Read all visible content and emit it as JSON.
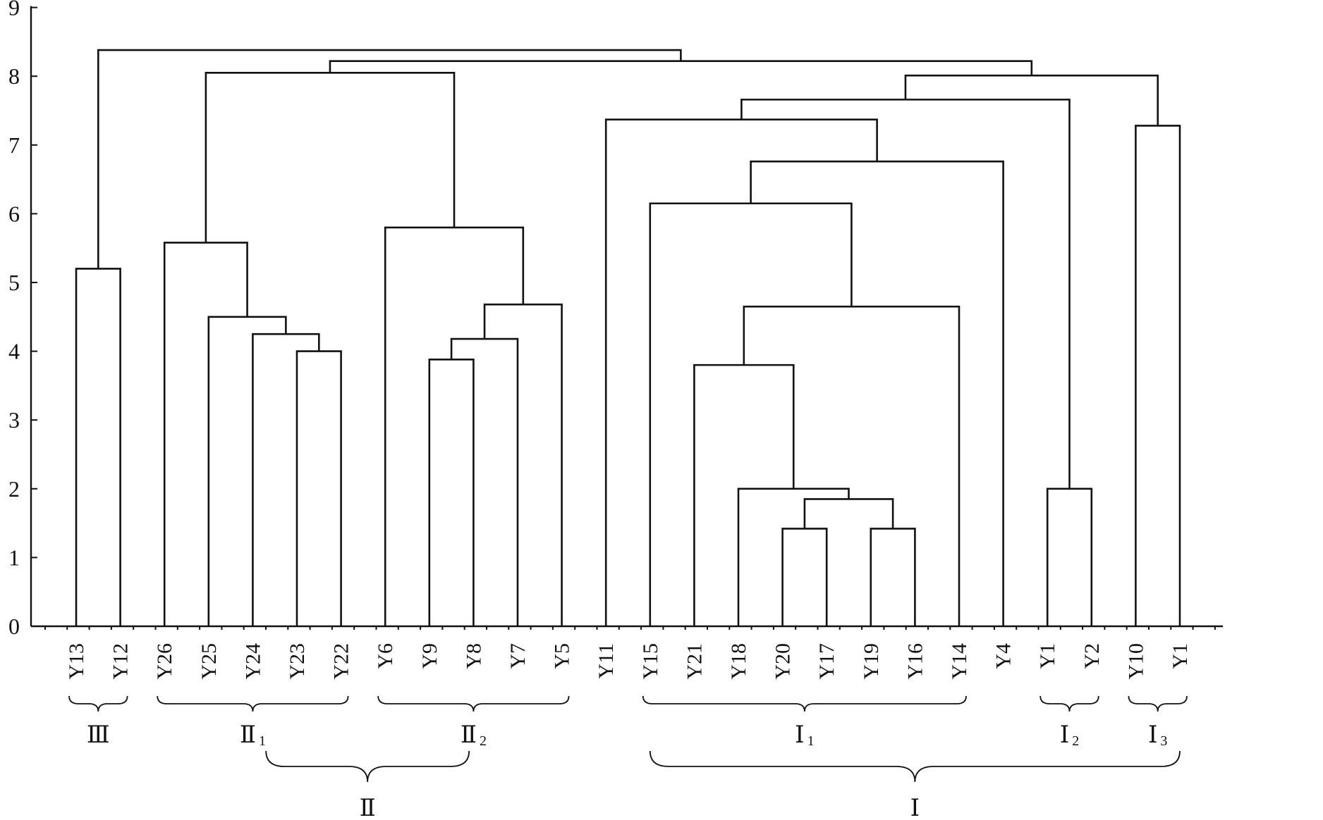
{
  "chart_data": {
    "type": "dendrogram",
    "title": "",
    "xlabel": "",
    "ylabel": "",
    "ylim": [
      0,
      9
    ],
    "y_ticks": [
      0,
      1,
      2,
      3,
      4,
      5,
      6,
      7,
      8,
      9
    ],
    "grid": false,
    "legend": "none",
    "leaves": [
      "Y13",
      "Y12",
      "Y26",
      "Y25",
      "Y24",
      "Y23",
      "Y22",
      "Y6",
      "Y9",
      "Y8",
      "Y7",
      "Y5",
      "Y11",
      "Y15",
      "Y21",
      "Y18",
      "Y20",
      "Y17",
      "Y19",
      "Y16",
      "Y14",
      "Y4",
      "Y1",
      "Y2",
      "Y10",
      "Y1"
    ],
    "merges": [
      {
        "id": "n1",
        "left": "L0",
        "right": "L1",
        "height": 5.2
      },
      {
        "id": "n2",
        "left": "L5",
        "right": "L6",
        "height": 4.0
      },
      {
        "id": "n3",
        "left": "L4",
        "right": "n2",
        "height": 4.25
      },
      {
        "id": "n4",
        "left": "L3",
        "right": "n3",
        "height": 4.5
      },
      {
        "id": "n5",
        "left": "L2",
        "right": "n4",
        "height": 5.58
      },
      {
        "id": "n6",
        "left": "L8",
        "right": "L9",
        "height": 3.88
      },
      {
        "id": "n7",
        "left": "n6",
        "right": "L10",
        "height": 4.18
      },
      {
        "id": "n8",
        "left": "n7",
        "right": "L11",
        "height": 4.68
      },
      {
        "id": "n9",
        "left": "L7",
        "right": "n8",
        "height": 5.8
      },
      {
        "id": "n10",
        "left": "n5",
        "right": "n9",
        "height": 8.05
      },
      {
        "id": "n11",
        "left": "L16",
        "right": "L17",
        "height": 1.42
      },
      {
        "id": "n12",
        "left": "L18",
        "right": "L19",
        "height": 1.42
      },
      {
        "id": "n13",
        "left": "n11",
        "right": "n12",
        "height": 1.85
      },
      {
        "id": "n14",
        "left": "L15",
        "right": "n13",
        "height": 2.0
      },
      {
        "id": "n15",
        "left": "L14",
        "right": "n14",
        "height": 3.8
      },
      {
        "id": "n16",
        "left": "n15",
        "right": "L20",
        "height": 4.65
      },
      {
        "id": "n17",
        "left": "L13",
        "right": "n16",
        "height": 6.15
      },
      {
        "id": "n18",
        "left": "n17",
        "right": "L21",
        "height": 6.76
      },
      {
        "id": "n19",
        "left": "L12",
        "right": "n18",
        "height": 7.37
      },
      {
        "id": "n20",
        "left": "L22",
        "right": "L23",
        "height": 2.0
      },
      {
        "id": "n21",
        "left": "n19",
        "right": "n20",
        "height": 7.66
      },
      {
        "id": "n22",
        "left": "L24",
        "right": "L25",
        "height": 7.28
      },
      {
        "id": "n23",
        "left": "n21",
        "right": "n22",
        "height": 8.01
      },
      {
        "id": "n24",
        "left": "n10",
        "right": "n23",
        "height": 8.22
      },
      {
        "id": "n25",
        "left": "n1",
        "right": "n24",
        "height": 8.38
      }
    ],
    "groups": [
      {
        "label": "Ⅲ",
        "sub": "",
        "from": 0,
        "to": 1,
        "level": 1
      },
      {
        "label": "Ⅱ",
        "sub": "1",
        "from": 2,
        "to": 6,
        "level": 1
      },
      {
        "label": "Ⅱ",
        "sub": "2",
        "from": 7,
        "to": 11,
        "level": 1
      },
      {
        "label": "Ⅰ",
        "sub": "1",
        "from": 13,
        "to": 20,
        "level": 1
      },
      {
        "label": "Ⅰ",
        "sub": "2",
        "from": 22,
        "to": 23,
        "level": 1
      },
      {
        "label": "Ⅰ",
        "sub": "3",
        "from": 24,
        "to": 25,
        "level": 1
      },
      {
        "label": "Ⅱ",
        "sub": "",
        "from": 4.3,
        "to": 8.9,
        "level": 2
      },
      {
        "label": "Ⅰ",
        "sub": "",
        "from": 13,
        "to": 25,
        "level": 2
      }
    ]
  }
}
